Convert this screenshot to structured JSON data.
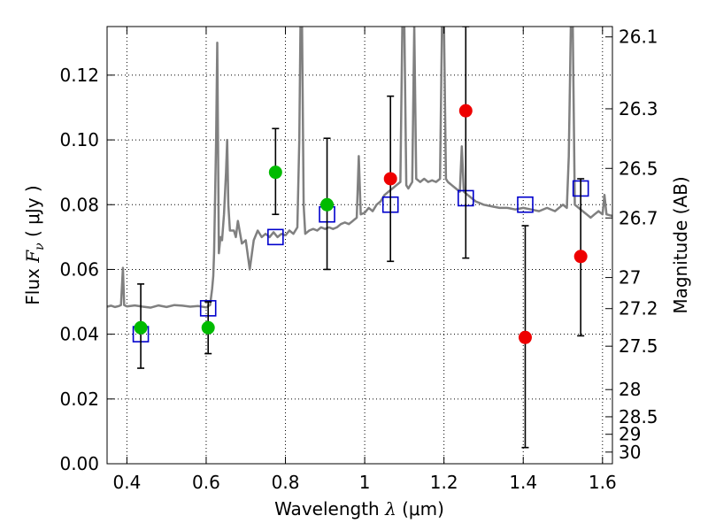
{
  "chart_data": {
    "type": "scatter",
    "xlabel_prefix": "Wavelength",
    "xlabel_symbol": "λ",
    "xlabel_unit": "(μm)",
    "ylabel_prefix": "Flux",
    "ylabel_symbol": "F",
    "ylabel_subscript": "ν",
    "ylabel_unit": "( μJy )",
    "y2label": "Magnitude (AB)",
    "xlim": [
      0.35,
      1.625
    ],
    "ylim": [
      0.0,
      0.135
    ],
    "grid": true,
    "x_ticks": [
      {
        "value": 0.4,
        "label": "0.4"
      },
      {
        "value": 0.6,
        "label": "0.6"
      },
      {
        "value": 0.8,
        "label": "0.8"
      },
      {
        "value": 1.0,
        "label": "1"
      },
      {
        "value": 1.2,
        "label": "1.2"
      },
      {
        "value": 1.4,
        "label": "1.4"
      },
      {
        "value": 1.6,
        "label": "1.6"
      }
    ],
    "y_ticks": [
      {
        "value": 0.0,
        "label": "0.00"
      },
      {
        "value": 0.02,
        "label": "0.02"
      },
      {
        "value": 0.04,
        "label": "0.04"
      },
      {
        "value": 0.06,
        "label": "0.06"
      },
      {
        "value": 0.08,
        "label": "0.08"
      },
      {
        "value": 0.1,
        "label": "0.10"
      },
      {
        "value": 0.12,
        "label": "0.12"
      }
    ],
    "mag_ticks": [
      {
        "label": "26.1",
        "flux": 0.1318
      },
      {
        "label": "26.3",
        "flux": 0.1096
      },
      {
        "label": "26.5",
        "flux": 0.0912
      },
      {
        "label": "26.7",
        "flux": 0.0759
      },
      {
        "label": "27",
        "flux": 0.0575
      },
      {
        "label": "27.2",
        "flux": 0.0479
      },
      {
        "label": "27.5",
        "flux": 0.0363
      },
      {
        "label": "28",
        "flux": 0.0229
      },
      {
        "label": "28.5",
        "flux": 0.0145
      },
      {
        "label": "29",
        "flux": 0.0091
      },
      {
        "label": "30",
        "flux": 0.0036
      }
    ],
    "series": [
      {
        "kind": "line",
        "color": "#808080",
        "points": [
          [
            0.35,
            0.0485
          ],
          [
            0.36,
            0.0488
          ],
          [
            0.37,
            0.0484
          ],
          [
            0.38,
            0.0487
          ],
          [
            0.385,
            0.049
          ],
          [
            0.39,
            0.0605
          ],
          [
            0.393,
            0.049
          ],
          [
            0.4,
            0.0486
          ],
          [
            0.42,
            0.0489
          ],
          [
            0.44,
            0.0485
          ],
          [
            0.46,
            0.0482
          ],
          [
            0.48,
            0.0489
          ],
          [
            0.5,
            0.0484
          ],
          [
            0.52,
            0.049
          ],
          [
            0.54,
            0.0488
          ],
          [
            0.56,
            0.0485
          ],
          [
            0.58,
            0.0487
          ],
          [
            0.6,
            0.0483
          ],
          [
            0.61,
            0.049
          ],
          [
            0.615,
            0.054
          ],
          [
            0.618,
            0.058
          ],
          [
            0.62,
            0.065
          ],
          [
            0.625,
            0.1
          ],
          [
            0.628,
            0.13
          ],
          [
            0.632,
            0.065
          ],
          [
            0.636,
            0.07
          ],
          [
            0.64,
            0.069
          ],
          [
            0.645,
            0.077
          ],
          [
            0.65,
            0.09
          ],
          [
            0.653,
            0.1
          ],
          [
            0.656,
            0.08
          ],
          [
            0.66,
            0.072
          ],
          [
            0.67,
            0.072
          ],
          [
            0.675,
            0.07
          ],
          [
            0.68,
            0.075
          ],
          [
            0.69,
            0.068
          ],
          [
            0.7,
            0.069
          ],
          [
            0.71,
            0.06
          ],
          [
            0.72,
            0.069
          ],
          [
            0.73,
            0.072
          ],
          [
            0.74,
            0.07
          ],
          [
            0.75,
            0.071
          ],
          [
            0.76,
            0.07
          ],
          [
            0.77,
            0.0715
          ],
          [
            0.78,
            0.07
          ],
          [
            0.79,
            0.071
          ],
          [
            0.8,
            0.0705
          ],
          [
            0.81,
            0.072
          ],
          [
            0.82,
            0.071
          ],
          [
            0.83,
            0.073
          ],
          [
            0.835,
            0.1
          ],
          [
            0.838,
            0.135
          ],
          [
            0.842,
            0.135
          ],
          [
            0.846,
            0.08
          ],
          [
            0.85,
            0.071
          ],
          [
            0.86,
            0.072
          ],
          [
            0.87,
            0.0725
          ],
          [
            0.88,
            0.072
          ],
          [
            0.89,
            0.073
          ],
          [
            0.9,
            0.0725
          ],
          [
            0.91,
            0.073
          ],
          [
            0.92,
            0.0725
          ],
          [
            0.93,
            0.073
          ],
          [
            0.94,
            0.074
          ],
          [
            0.95,
            0.0745
          ],
          [
            0.96,
            0.074
          ],
          [
            0.97,
            0.075
          ],
          [
            0.98,
            0.076
          ],
          [
            0.985,
            0.095
          ],
          [
            0.99,
            0.077
          ],
          [
            1.0,
            0.0775
          ],
          [
            1.01,
            0.079
          ],
          [
            1.02,
            0.078
          ],
          [
            1.03,
            0.08
          ],
          [
            1.04,
            0.081
          ],
          [
            1.05,
            0.083
          ],
          [
            1.06,
            0.084
          ],
          [
            1.07,
            0.085
          ],
          [
            1.08,
            0.086
          ],
          [
            1.09,
            0.087
          ],
          [
            1.095,
            0.135
          ],
          [
            1.1,
            0.135
          ],
          [
            1.105,
            0.086
          ],
          [
            1.11,
            0.085
          ],
          [
            1.12,
            0.087
          ],
          [
            1.125,
            0.135
          ],
          [
            1.13,
            0.088
          ],
          [
            1.14,
            0.087
          ],
          [
            1.15,
            0.088
          ],
          [
            1.16,
            0.087
          ],
          [
            1.17,
            0.0875
          ],
          [
            1.18,
            0.087
          ],
          [
            1.19,
            0.088
          ],
          [
            1.195,
            0.135
          ],
          [
            1.2,
            0.135
          ],
          [
            1.205,
            0.088
          ],
          [
            1.21,
            0.087
          ],
          [
            1.22,
            0.086
          ],
          [
            1.23,
            0.085
          ],
          [
            1.24,
            0.084
          ],
          [
            1.245,
            0.098
          ],
          [
            1.25,
            0.084
          ],
          [
            1.26,
            0.083
          ],
          [
            1.27,
            0.082
          ],
          [
            1.28,
            0.081
          ],
          [
            1.29,
            0.0805
          ],
          [
            1.3,
            0.08
          ],
          [
            1.32,
            0.0795
          ],
          [
            1.34,
            0.079
          ],
          [
            1.36,
            0.079
          ],
          [
            1.38,
            0.0785
          ],
          [
            1.4,
            0.079
          ],
          [
            1.42,
            0.0785
          ],
          [
            1.44,
            0.078
          ],
          [
            1.46,
            0.079
          ],
          [
            1.48,
            0.078
          ],
          [
            1.5,
            0.08
          ],
          [
            1.51,
            0.079
          ],
          [
            1.515,
            0.095
          ],
          [
            1.52,
            0.135
          ],
          [
            1.525,
            0.135
          ],
          [
            1.53,
            0.08
          ],
          [
            1.54,
            0.079
          ],
          [
            1.55,
            0.078
          ],
          [
            1.56,
            0.077
          ],
          [
            1.57,
            0.076
          ],
          [
            1.58,
            0.077
          ],
          [
            1.59,
            0.078
          ],
          [
            1.6,
            0.077
          ],
          [
            1.605,
            0.083
          ],
          [
            1.61,
            0.077
          ],
          [
            1.625,
            0.0765
          ]
        ]
      },
      {
        "kind": "open-square",
        "color": "#0000cc",
        "points": [
          [
            0.435,
            0.04
          ],
          [
            0.605,
            0.048
          ],
          [
            0.775,
            0.07
          ],
          [
            0.905,
            0.077
          ],
          [
            1.065,
            0.08
          ],
          [
            1.255,
            0.082
          ],
          [
            1.405,
            0.08
          ],
          [
            1.545,
            0.085
          ]
        ]
      },
      {
        "kind": "filled-circle",
        "color": "#00bb00",
        "points": [
          {
            "x": 0.435,
            "y": 0.042,
            "err_lo": 0.0295,
            "err_hi": 0.0555
          },
          {
            "x": 0.605,
            "y": 0.042,
            "err_lo": 0.034,
            "err_hi": 0.05
          },
          {
            "x": 0.775,
            "y": 0.09,
            "err_lo": 0.077,
            "err_hi": 0.1035
          },
          {
            "x": 0.905,
            "y": 0.08,
            "err_lo": 0.06,
            "err_hi": 0.1005
          }
        ]
      },
      {
        "kind": "filled-circle",
        "color": "#ee0000",
        "points": [
          {
            "x": 1.065,
            "y": 0.088,
            "err_lo": 0.0625,
            "err_hi": 0.1135
          },
          {
            "x": 1.255,
            "y": 0.109,
            "err_lo": 0.0635,
            "err_hi": 0.135
          },
          {
            "x": 1.405,
            "y": 0.039,
            "err_lo": 0.005,
            "err_hi": 0.0735
          },
          {
            "x": 1.545,
            "y": 0.064,
            "err_lo": 0.0395,
            "err_hi": 0.088
          }
        ]
      }
    ]
  }
}
